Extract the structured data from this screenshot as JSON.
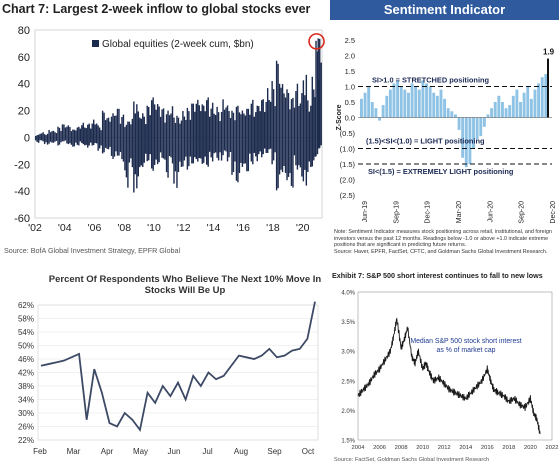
{
  "chart_data": [
    {
      "type": "bar",
      "title": "Chart 7: Largest 2-week inflow to global stocks ever",
      "legend": "Global equities (2-week cum, $bn)",
      "source": "Source: BofA Global Investment Strategy, EPFR Global",
      "y_ticks": [
        "80",
        "60",
        "40",
        "20",
        "0",
        "-20",
        "-40",
        "-60"
      ],
      "x_ticks": [
        "'02",
        "'04",
        "'06",
        "'08",
        "'10",
        "'12",
        "'14",
        "'16",
        "'18",
        "'20"
      ],
      "ylim": [
        -60,
        80
      ],
      "xlim": [
        2002,
        2021.3
      ],
      "color": "#1c2a4d",
      "highlight_color": "#d9291c",
      "x": [
        2002,
        2002.3,
        2002.6,
        2002.9,
        2003.2,
        2003.5,
        2003.8,
        2004.1,
        2004.4,
        2004.7,
        2005,
        2005.3,
        2005.6,
        2005.9,
        2006.2,
        2006.5,
        2006.8,
        2007.1,
        2007.4,
        2007.7,
        2008,
        2008.3,
        2008.6,
        2008.9,
        2009.2,
        2009.5,
        2009.8,
        2010.1,
        2010.4,
        2010.7,
        2011,
        2011.3,
        2011.6,
        2011.9,
        2012.2,
        2012.5,
        2012.8,
        2013.1,
        2013.4,
        2013.7,
        2014,
        2014.3,
        2014.6,
        2014.9,
        2015.2,
        2015.5,
        2015.8,
        2016.1,
        2016.4,
        2016.7,
        2017,
        2017.3,
        2017.6,
        2017.9,
        2018.2,
        2018.5,
        2018.8,
        2019.1,
        2019.4,
        2019.7,
        2020,
        2020.3,
        2020.6,
        2020.85,
        2021.0
      ],
      "hi": [
        2,
        4,
        3,
        6,
        5,
        8,
        10,
        9,
        6,
        8,
        11,
        10,
        12,
        14,
        9,
        20,
        15,
        18,
        22,
        17,
        12,
        15,
        30,
        20,
        18,
        24,
        30,
        25,
        22,
        20,
        24,
        18,
        16,
        20,
        22,
        26,
        28,
        25,
        30,
        26,
        24,
        22,
        30,
        24,
        20,
        24,
        20,
        22,
        28,
        24,
        30,
        32,
        38,
        42,
        58,
        40,
        36,
        30,
        40,
        34,
        52,
        30,
        46,
        72,
        76
      ],
      "lo": [
        -4,
        -3,
        -6,
        -5,
        -4,
        -6,
        -3,
        -5,
        -7,
        -6,
        -5,
        -8,
        -7,
        -6,
        -10,
        -12,
        -9,
        -16,
        -14,
        -18,
        -38,
        -24,
        -46,
        -30,
        -22,
        -18,
        -25,
        -20,
        -16,
        -30,
        -20,
        -42,
        -28,
        -22,
        -24,
        -20,
        -18,
        -20,
        -22,
        -18,
        -16,
        -20,
        -14,
        -18,
        -28,
        -34,
        -22,
        -26,
        -20,
        -18,
        -16,
        -14,
        -12,
        -20,
        -40,
        -26,
        -32,
        -38,
        -24,
        -30,
        -40,
        -28,
        -22,
        -14,
        -8
      ]
    },
    {
      "type": "bar",
      "title": "Sentiment Indicator",
      "ylabel": "Z-Score",
      "y_ticks": [
        "2.5",
        "2.0",
        "1.5",
        "1.0",
        "0.5",
        "0.0",
        "(0.5)",
        "(1.0)",
        "(1.5)",
        "(2.0)",
        "(2.5)"
      ],
      "x_ticks": [
        "Jun-19",
        "Sep-19",
        "Dec-19",
        "Mar-20",
        "Jun-20",
        "Sep-20",
        "Dec-20"
      ],
      "ylim": [
        -2.5,
        2.5
      ],
      "values": [
        0.6,
        0.8,
        1.0,
        0.5,
        0.3,
        -0.1,
        0.4,
        0.7,
        0.9,
        1.1,
        1.2,
        1.0,
        0.9,
        0.8,
        1.1,
        1.0,
        0.9,
        1.2,
        1.1,
        1.0,
        0.8,
        0.7,
        0.9,
        0.6,
        0.3,
        0.2,
        0.1,
        -0.4,
        -1.3,
        -1.6,
        -1.5,
        -1.0,
        -0.7,
        -0.6,
        -0.3,
        0.1,
        0.3,
        0.5,
        0.7,
        0.5,
        0.3,
        0.4,
        0.7,
        0.9,
        0.5,
        0.8,
        1.0,
        0.6,
        0.9,
        1.1,
        1.3,
        1.4
      ],
      "last_value": 1.9,
      "last_label": "1.9",
      "lines": [
        1.0,
        -1.0,
        -1.5
      ],
      "annotations": [
        "SI>1.0 = STRETCHED positioning",
        "(1.5)<SI<(1.0) = LIGHT positioning",
        "SI<(1.5) = EXTREMELY LIGHT positioning"
      ],
      "bar_color": "#8fc3e6",
      "note": "Note: Sentiment Indicator measures stock positioning across retail, institutional, and foreign investors versus the past 12 months. Readings below -1.0 or above +1.0 indicate extreme positions that are significant in predicting future returns.",
      "source": "Source: Haver, EPFR, FactSet, CFTC, and Goldman Sachs Global Investment Research."
    },
    {
      "type": "line",
      "title": "Percent Of Respondents Who Believe The Next 10% Move In Stocks Will Be Up",
      "y_ticks": [
        "62%",
        "58%",
        "54%",
        "50%",
        "46%",
        "42%",
        "38%",
        "34%",
        "30%",
        "26%",
        "22%"
      ],
      "x_ticks": [
        "Feb",
        "Mar",
        "Apr",
        "May",
        "Jun",
        "Jul",
        "Aug",
        "Sep",
        "Oct"
      ],
      "ylim": [
        22,
        62
      ],
      "color": "#3d4a66",
      "values": [
        44,
        44.5,
        45,
        45.5,
        46.5,
        47.5,
        28,
        43,
        36,
        27,
        26,
        30,
        28,
        25,
        36,
        33,
        38,
        35,
        39,
        34,
        41,
        38,
        42,
        40,
        41,
        44,
        47,
        46.5,
        46,
        47,
        49,
        46.5,
        47,
        48.5,
        49,
        52,
        63
      ]
    },
    {
      "type": "line",
      "title": "Exhibit 7: S&P 500 short interest continues to fall to new lows",
      "annotation": "Median S&P 500 stock short interest as % of market cap",
      "y_ticks": [
        "4.0%",
        "3.5%",
        "3.0%",
        "2.5%",
        "2.0%",
        "1.5%"
      ],
      "x_ticks": [
        "2004",
        "2006",
        "2008",
        "2010",
        "2012",
        "2014",
        "2016",
        "2018",
        "2020",
        "2022"
      ],
      "ylim": [
        1.5,
        4.0
      ],
      "xlim": [
        2004,
        2022
      ],
      "color": "#1a1a1a",
      "x": [
        2004,
        2004.5,
        2005,
        2005.5,
        2006,
        2006.5,
        2007,
        2007.3,
        2007.6,
        2008,
        2008.3,
        2008.6,
        2009,
        2009.3,
        2009.6,
        2010,
        2010.3,
        2010.6,
        2011,
        2011.5,
        2012,
        2012.5,
        2013,
        2013.5,
        2014,
        2014.5,
        2015,
        2015.5,
        2016,
        2016.3,
        2016.6,
        2017,
        2017.5,
        2018,
        2018.5,
        2019,
        2019.5,
        2020,
        2020.3,
        2020.6,
        2020.9
      ],
      "values": [
        2.25,
        2.35,
        2.45,
        2.6,
        2.7,
        2.85,
        3.0,
        3.25,
        3.55,
        3.05,
        3.2,
        3.4,
        2.9,
        2.8,
        3.0,
        2.7,
        2.8,
        2.65,
        2.5,
        2.55,
        2.45,
        2.35,
        2.3,
        2.25,
        2.2,
        2.3,
        2.4,
        2.5,
        2.7,
        2.5,
        2.35,
        2.3,
        2.25,
        2.15,
        2.2,
        2.1,
        2.05,
        2.2,
        1.95,
        1.85,
        1.6
      ],
      "source": "Source: FactSet, Goldman Sachs Global Investment Research"
    }
  ]
}
